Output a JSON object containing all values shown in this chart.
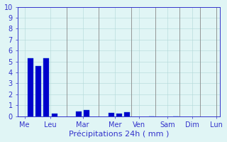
{
  "bar_positions": [
    1,
    2,
    3,
    4,
    7,
    8,
    11,
    12,
    13,
    16,
    19
  ],
  "values": [
    5.3,
    4.6,
    5.3,
    0.2,
    0.4,
    0.55,
    0.3,
    0.25,
    0.35,
    0.0,
    0.0
  ],
  "bar_color": "#0000cc",
  "bar_edge_color": "#1a55cc",
  "background_color": "#e0f5f5",
  "grid_color": "#b0d8d8",
  "xlabel": "Précipitations 24h ( mm )",
  "ylim": [
    0,
    10
  ],
  "yticks": [
    0,
    1,
    2,
    3,
    4,
    5,
    6,
    7,
    8,
    9,
    10
  ],
  "bar_width": 0.7,
  "axis_color": "#3333cc",
  "xlabel_fontsize": 8,
  "tick_fontsize": 7,
  "day_lines_x": [
    0,
    5.5,
    9.5,
    14.5,
    17.5,
    20.5,
    22.5
  ],
  "day_tick_x": [
    0.5,
    5.0,
    9.0,
    13.0,
    16.5,
    19.5,
    22.0,
    24.0
  ],
  "day_labels": [
    "Me",
    "Leu",
    "Mar",
    "Mer",
    "Ven",
    "Sam",
    "Dim",
    "Lun"
  ],
  "xlim": [
    -0.5,
    24.5
  ]
}
